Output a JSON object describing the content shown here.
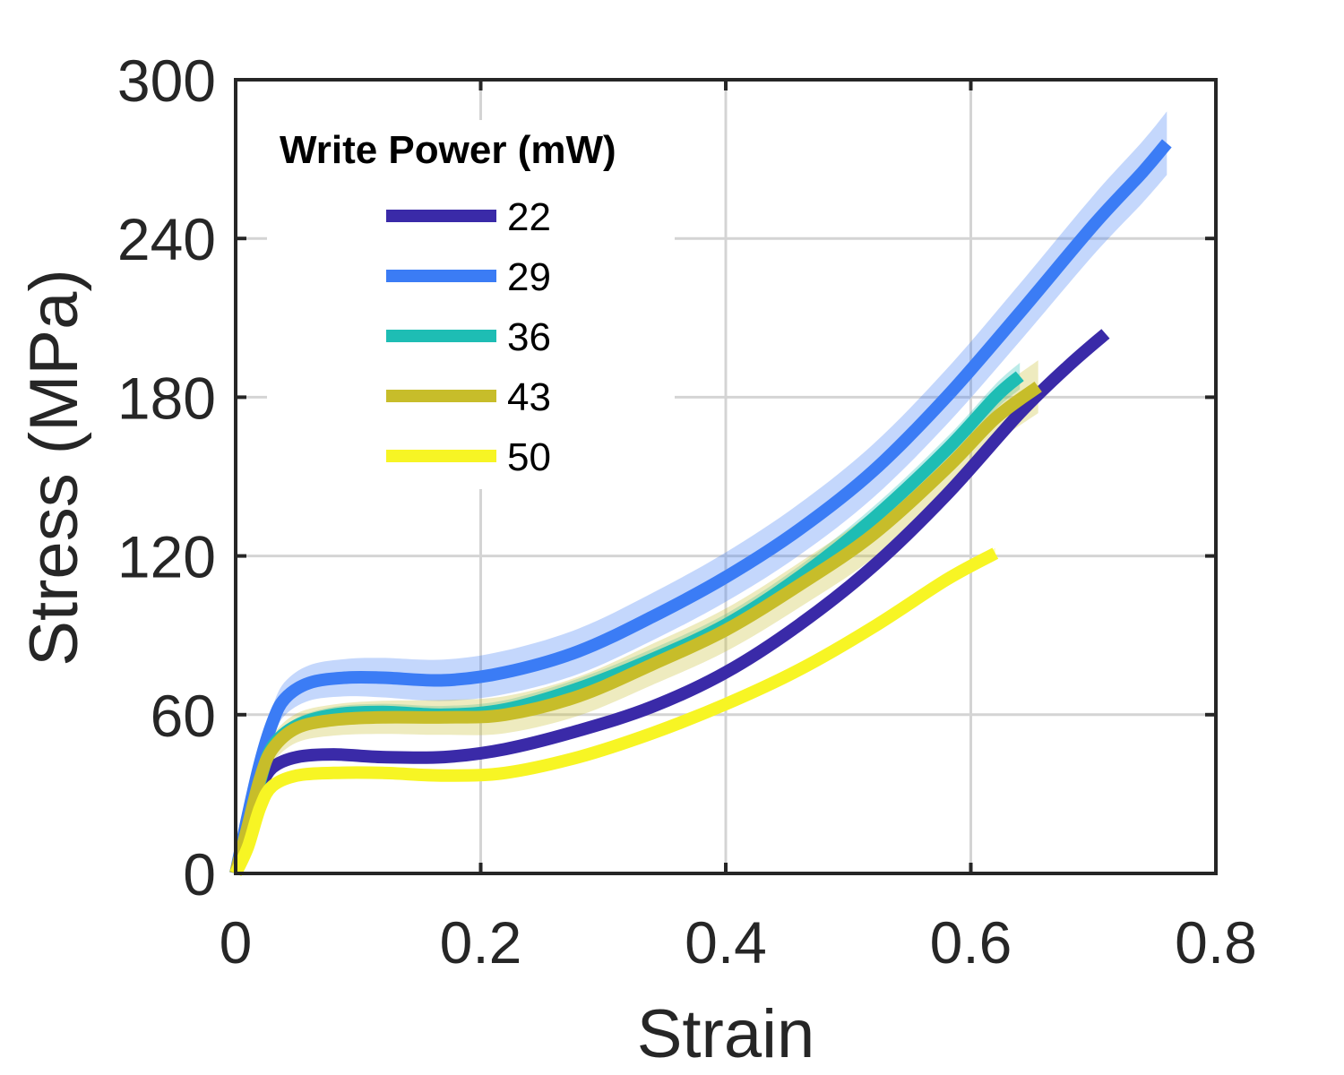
{
  "chart_data": {
    "type": "line",
    "xlabel": "Strain",
    "ylabel": "Stress (MPa)",
    "xlim": [
      0,
      0.8
    ],
    "ylim": [
      0,
      300
    ],
    "xticks": [
      "0",
      "0.2",
      "0.4",
      "0.6",
      "0.8"
    ],
    "yticks": [
      "0",
      "60",
      "120",
      "180",
      "240",
      "300"
    ],
    "xtick_values": [
      0,
      0.2,
      0.4,
      0.6,
      0.8
    ],
    "ytick_values": [
      0,
      60,
      120,
      180,
      240,
      300
    ],
    "grid": true,
    "legend": {
      "title": "Write Power (mW)",
      "location": "top-left"
    },
    "series": [
      {
        "name": "22",
        "color": "#3a2aa8",
        "x": [
          0,
          0.01,
          0.02,
          0.03,
          0.05,
          0.08,
          0.12,
          0.17,
          0.22,
          0.28,
          0.34,
          0.4,
          0.46,
          0.52,
          0.58,
          0.64,
          0.68,
          0.71
        ],
        "y": [
          0,
          18,
          32,
          40,
          44,
          45,
          44,
          44,
          47,
          54,
          63,
          76,
          94,
          116,
          143,
          174,
          192,
          204
        ],
        "band": 0
      },
      {
        "name": "29",
        "color": "#3b7cf5",
        "x": [
          0,
          0.01,
          0.02,
          0.03,
          0.04,
          0.06,
          0.09,
          0.12,
          0.17,
          0.22,
          0.28,
          0.34,
          0.4,
          0.46,
          0.52,
          0.58,
          0.64,
          0.7,
          0.74,
          0.76
        ],
        "y": [
          0,
          22,
          42,
          57,
          66,
          72,
          74,
          74,
          73,
          76,
          84,
          97,
          112,
          130,
          152,
          180,
          212,
          245,
          265,
          276
        ],
        "band": 12
      },
      {
        "name": "36",
        "color": "#1ebdb4",
        "x": [
          0,
          0.01,
          0.02,
          0.03,
          0.05,
          0.08,
          0.12,
          0.17,
          0.22,
          0.28,
          0.34,
          0.4,
          0.46,
          0.52,
          0.58,
          0.62,
          0.64
        ],
        "y": [
          0,
          16,
          35,
          48,
          56,
          60,
          61,
          60,
          62,
          70,
          81,
          94,
          112,
          134,
          160,
          180,
          188
        ],
        "band": 5
      },
      {
        "name": "43",
        "color": "#c7bd2a",
        "x": [
          0,
          0.01,
          0.02,
          0.03,
          0.05,
          0.08,
          0.12,
          0.17,
          0.22,
          0.28,
          0.34,
          0.4,
          0.46,
          0.52,
          0.58,
          0.62,
          0.655
        ],
        "y": [
          0,
          18,
          36,
          47,
          55,
          58,
          59,
          59,
          60,
          67,
          79,
          92,
          109,
          128,
          153,
          172,
          184
        ],
        "band": 10
      },
      {
        "name": "50",
        "color": "#f7f524",
        "x": [
          0,
          0.01,
          0.02,
          0.03,
          0.05,
          0.08,
          0.12,
          0.17,
          0.22,
          0.28,
          0.34,
          0.4,
          0.46,
          0.52,
          0.58,
          0.62
        ],
        "y": [
          0,
          10,
          25,
          33,
          37,
          38,
          38,
          37,
          38,
          44,
          53,
          64,
          77,
          93,
          111,
          121
        ],
        "band": 2
      }
    ]
  }
}
